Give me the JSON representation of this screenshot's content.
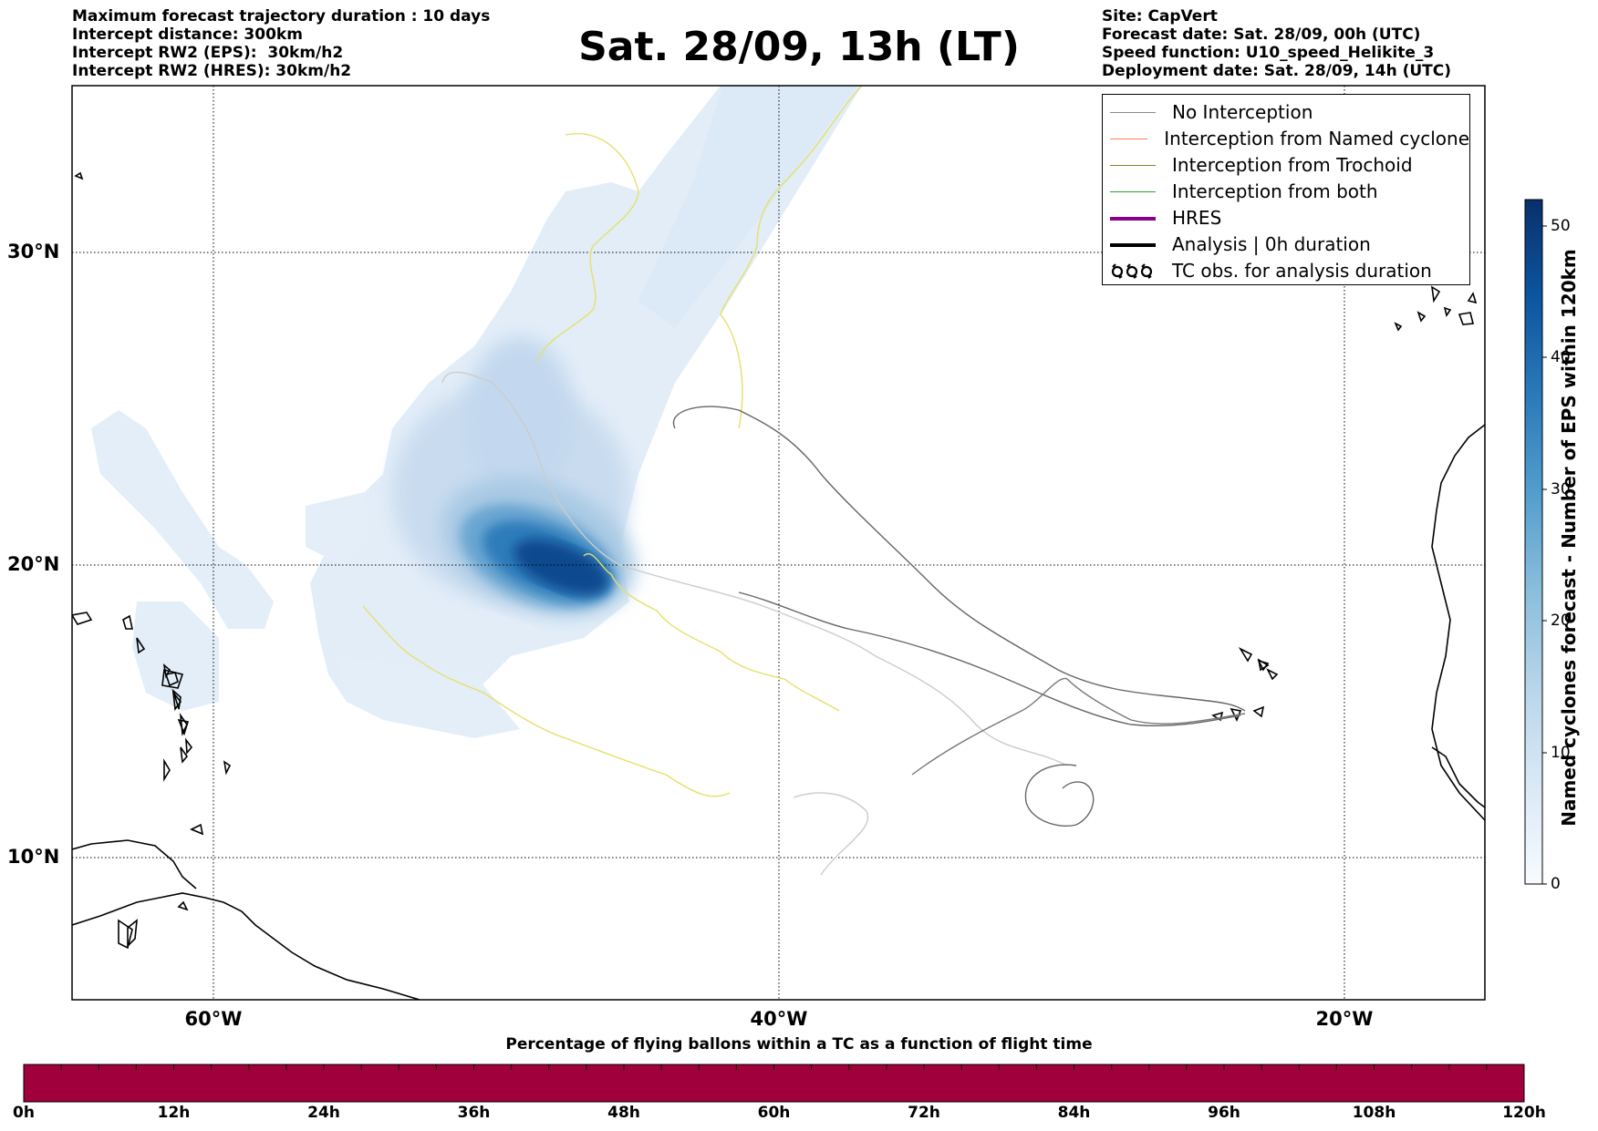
{
  "header_left": [
    "Maximum forecast trajectory duration : 10 days",
    "Intercept distance: 300km",
    "Intercept RW2 (EPS):  30km/h2",
    "Intercept RW2 (HRES): 30km/h2"
  ],
  "title": "Sat. 28/09, 13h (LT)",
  "header_right": [
    "Site: CapVert",
    "Forecast date: Sat. 28/09, 00h (UTC)",
    "Speed function: U10_speed_Helikite_3",
    "Deployment date: Sat. 28/09, 14h (UTC)"
  ],
  "map": {
    "lat_labels": [
      "30°N",
      "20°N",
      "10°N"
    ],
    "lon_labels": [
      "60°W",
      "40°W",
      "20°W"
    ],
    "extent": {
      "lon": [
        -65,
        -15
      ],
      "lat": [
        5.4,
        34.7
      ]
    },
    "grid_lats": [
      30,
      20,
      10
    ],
    "grid_lons": [
      -60,
      -40,
      -20
    ]
  },
  "legend": [
    {
      "label": "No Interception",
      "color": "#8c8c8c",
      "style": "line"
    },
    {
      "label": "Interception from Named cyclone",
      "color": "#ff7f50",
      "style": "line"
    },
    {
      "label": "Interception from Trochoid",
      "color": "#8b7d2b",
      "style": "line"
    },
    {
      "label": "Interception from both",
      "color": "#2ca02c",
      "style": "line"
    },
    {
      "label": "HRES",
      "color": "#8b008b",
      "style": "thick"
    },
    {
      "label": "Analysis | 0h duration",
      "color": "#000000",
      "style": "thick"
    },
    {
      "label": "TC obs. for analysis duration",
      "color": "#000000",
      "style": "cyclone-icon"
    }
  ],
  "colorbar": {
    "label": "Named cyclones forecast - Number of EPS within 120km",
    "ticks": [
      "50",
      "40",
      "30",
      "20",
      "10",
      "0"
    ],
    "range": [
      0,
      52
    ],
    "colors": [
      "#f7fbff",
      "#dbe9f6",
      "#bad6eb",
      "#89bedc",
      "#539ecd",
      "#2b7bba",
      "#0b559f",
      "#08306b"
    ]
  },
  "bottom_bar": {
    "title": "Percentage of flying ballons within a TC as a function of flight time",
    "ticks": [
      "0h",
      "12h",
      "24h",
      "36h",
      "48h",
      "60h",
      "72h",
      "84h",
      "96h",
      "108h",
      "120h"
    ],
    "color": "#a0003c"
  }
}
